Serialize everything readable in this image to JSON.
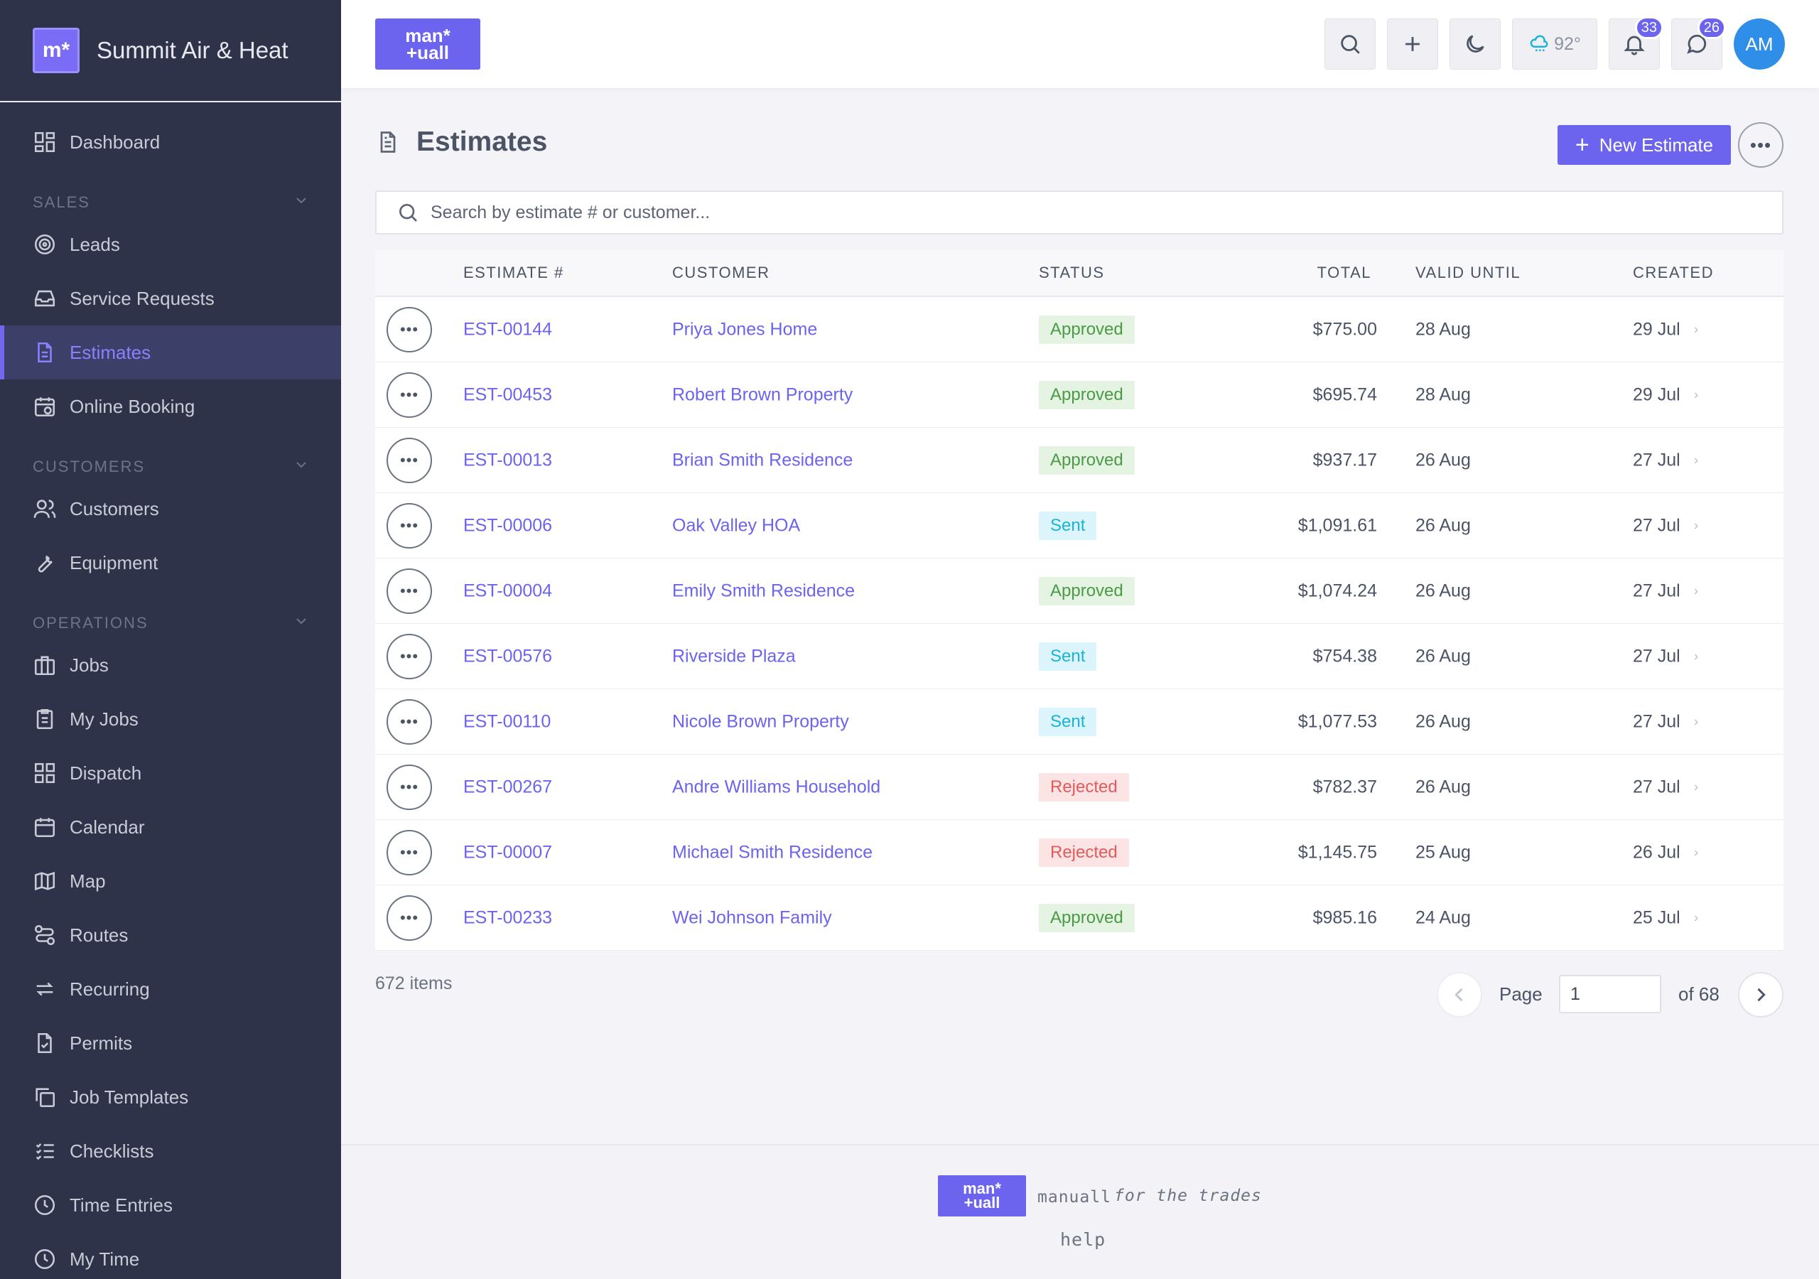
{
  "sidebar": {
    "brand_logo": "m*",
    "brand_name": "Summit Air & Heat",
    "dashboard": "Dashboard",
    "sections": {
      "sales": "SALES",
      "customers": "CUSTOMERS",
      "operations": "OPERATIONS"
    },
    "sales_items": [
      "Leads",
      "Service Requests",
      "Estimates",
      "Online Booking"
    ],
    "customers_items": [
      "Customers",
      "Equipment"
    ],
    "operations_items": [
      "Jobs",
      "My Jobs",
      "Dispatch",
      "Calendar",
      "Map",
      "Routes",
      "Recurring",
      "Permits",
      "Job Templates",
      "Checklists",
      "Time Entries",
      "My Time"
    ],
    "active_item": "Estimates"
  },
  "topbar": {
    "logo_line1": "man*",
    "logo_line2": "+uall",
    "weather_temp": "92°",
    "notifications_count": "33",
    "messages_count": "26",
    "avatar_initials": "AM"
  },
  "page": {
    "title": "Estimates",
    "new_button": "New Estimate",
    "more_label": "•••",
    "search_placeholder": "Search by estimate # or customer..."
  },
  "table": {
    "headers": {
      "number": "ESTIMATE #",
      "customer": "CUSTOMER",
      "status": "STATUS",
      "total": "TOTAL",
      "valid_until": "VALID UNTIL",
      "created": "CREATED"
    },
    "row_more": "•••",
    "row_arrow": "›",
    "rows": [
      {
        "number": "EST-00144",
        "customer": "Priya Jones Home",
        "status": "Approved",
        "total": "$775.00",
        "valid": "28 Aug",
        "created": "29 Jul"
      },
      {
        "number": "EST-00453",
        "customer": "Robert Brown Property",
        "status": "Approved",
        "total": "$695.74",
        "valid": "28 Aug",
        "created": "29 Jul"
      },
      {
        "number": "EST-00013",
        "customer": "Brian Smith Residence",
        "status": "Approved",
        "total": "$937.17",
        "valid": "26 Aug",
        "created": "27 Jul"
      },
      {
        "number": "EST-00006",
        "customer": "Oak Valley HOA",
        "status": "Sent",
        "total": "$1,091.61",
        "valid": "26 Aug",
        "created": "27 Jul"
      },
      {
        "number": "EST-00004",
        "customer": "Emily Smith Residence",
        "status": "Approved",
        "total": "$1,074.24",
        "valid": "26 Aug",
        "created": "27 Jul"
      },
      {
        "number": "EST-00576",
        "customer": "Riverside Plaza",
        "status": "Sent",
        "total": "$754.38",
        "valid": "26 Aug",
        "created": "27 Jul"
      },
      {
        "number": "EST-00110",
        "customer": "Nicole Brown Property",
        "status": "Sent",
        "total": "$1,077.53",
        "valid": "26 Aug",
        "created": "27 Jul"
      },
      {
        "number": "EST-00267",
        "customer": "Andre Williams Household",
        "status": "Rejected",
        "total": "$782.37",
        "valid": "26 Aug",
        "created": "27 Jul"
      },
      {
        "number": "EST-00007",
        "customer": "Michael Smith Residence",
        "status": "Rejected",
        "total": "$1,145.75",
        "valid": "25 Aug",
        "created": "26 Jul"
      },
      {
        "number": "EST-00233",
        "customer": "Wei Johnson Family",
        "status": "Approved",
        "total": "$985.16",
        "valid": "24 Aug",
        "created": "25 Jul"
      }
    ]
  },
  "pagination": {
    "items_count": "672 items",
    "page_label": "Page",
    "current_page": "1",
    "of_label": "of 68"
  },
  "footer": {
    "logo_line1": "man*",
    "logo_line2": "+uall",
    "name": "manuall",
    "tagline": "for the trades",
    "help": "help"
  },
  "colors": {
    "accent": "#6c63ee",
    "sidebar_bg": "#2f3349",
    "approved": "#4a9b45",
    "sent": "#19b4d8",
    "rejected": "#e45a5a"
  }
}
